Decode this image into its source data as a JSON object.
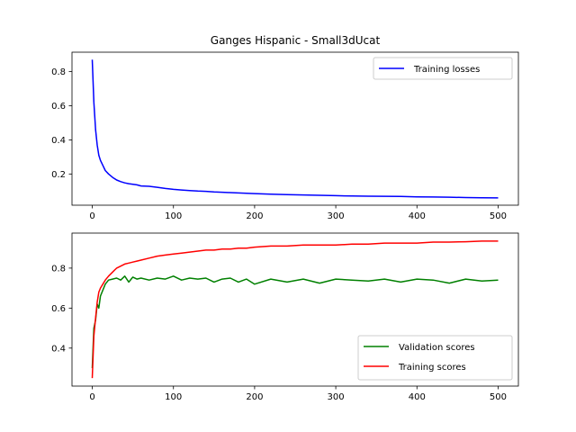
{
  "title": "Ganges Hispanic - Small3dUcat",
  "colors": {
    "losses": "#0000ff",
    "validation": "#008000",
    "training": "#ff0000"
  },
  "chart_data": [
    {
      "type": "line",
      "title": "Ganges Hispanic - Small3dUcat",
      "xlabel": "",
      "ylabel": "",
      "xlim": [
        -25,
        525
      ],
      "ylim": [
        0.017,
        0.914
      ],
      "x_ticks": [
        0,
        100,
        200,
        300,
        400,
        500
      ],
      "y_ticks": [
        0.2,
        0.4,
        0.6,
        0.8
      ],
      "x_tick_labels": [
        "0",
        "100",
        "200",
        "300",
        "400",
        "500"
      ],
      "y_tick_labels": [
        "0.2",
        "0.4",
        "0.6",
        "0.8"
      ],
      "grid": false,
      "legend": "top-right",
      "series": [
        {
          "name": "Training losses",
          "color": "#0000ff",
          "x": [
            0,
            2,
            4,
            6,
            8,
            10,
            13,
            16,
            20,
            25,
            30,
            35,
            40,
            45,
            50,
            55,
            60,
            70,
            80,
            90,
            100,
            110,
            120,
            130,
            140,
            150,
            160,
            170,
            180,
            190,
            200,
            220,
            240,
            260,
            280,
            300,
            320,
            340,
            360,
            380,
            400,
            420,
            440,
            460,
            480,
            500
          ],
          "y": [
            0.87,
            0.62,
            0.46,
            0.37,
            0.31,
            0.28,
            0.25,
            0.22,
            0.2,
            0.18,
            0.165,
            0.155,
            0.148,
            0.143,
            0.14,
            0.136,
            0.13,
            0.128,
            0.122,
            0.115,
            0.11,
            0.106,
            0.103,
            0.1,
            0.098,
            0.095,
            0.093,
            0.091,
            0.089,
            0.087,
            0.085,
            0.082,
            0.079,
            0.077,
            0.075,
            0.073,
            0.071,
            0.07,
            0.069,
            0.068,
            0.066,
            0.065,
            0.064,
            0.062,
            0.061,
            0.06
          ]
        }
      ]
    },
    {
      "type": "line",
      "title": "",
      "xlabel": "",
      "ylabel": "",
      "xlim": [
        -25,
        525
      ],
      "ylim": [
        0.21,
        0.975
      ],
      "x_ticks": [
        0,
        100,
        200,
        300,
        400,
        500
      ],
      "y_ticks": [
        0.4,
        0.6,
        0.8
      ],
      "x_tick_labels": [
        "0",
        "100",
        "200",
        "300",
        "400",
        "500"
      ],
      "y_tick_labels": [
        "0.4",
        "0.6",
        "0.8"
      ],
      "grid": false,
      "legend": "lower-right",
      "series": [
        {
          "name": "Validation scores",
          "color": "#008000",
          "x": [
            0,
            2,
            4,
            6,
            8,
            10,
            13,
            16,
            20,
            25,
            30,
            35,
            40,
            45,
            50,
            55,
            60,
            70,
            80,
            90,
            100,
            110,
            120,
            130,
            140,
            150,
            160,
            170,
            180,
            190,
            200,
            220,
            240,
            260,
            280,
            300,
            320,
            340,
            360,
            380,
            400,
            420,
            440,
            460,
            480,
            500
          ],
          "y": [
            0.3,
            0.5,
            0.54,
            0.62,
            0.6,
            0.66,
            0.69,
            0.72,
            0.74,
            0.745,
            0.75,
            0.74,
            0.76,
            0.73,
            0.755,
            0.745,
            0.75,
            0.74,
            0.75,
            0.745,
            0.76,
            0.74,
            0.75,
            0.745,
            0.75,
            0.73,
            0.745,
            0.75,
            0.73,
            0.745,
            0.72,
            0.745,
            0.73,
            0.745,
            0.725,
            0.745,
            0.74,
            0.735,
            0.745,
            0.73,
            0.745,
            0.74,
            0.725,
            0.745,
            0.735,
            0.74
          ]
        },
        {
          "name": "Training scores",
          "color": "#ff0000",
          "x": [
            0,
            2,
            4,
            6,
            8,
            10,
            13,
            16,
            20,
            25,
            30,
            35,
            40,
            45,
            50,
            55,
            60,
            70,
            80,
            90,
            100,
            110,
            120,
            130,
            140,
            150,
            160,
            170,
            180,
            190,
            200,
            220,
            240,
            260,
            280,
            300,
            320,
            340,
            360,
            380,
            400,
            420,
            440,
            460,
            480,
            500
          ],
          "y": [
            0.25,
            0.46,
            0.55,
            0.63,
            0.68,
            0.7,
            0.72,
            0.74,
            0.76,
            0.78,
            0.8,
            0.81,
            0.82,
            0.825,
            0.83,
            0.835,
            0.84,
            0.85,
            0.86,
            0.865,
            0.87,
            0.875,
            0.88,
            0.885,
            0.89,
            0.89,
            0.895,
            0.895,
            0.9,
            0.9,
            0.905,
            0.91,
            0.91,
            0.915,
            0.915,
            0.915,
            0.92,
            0.92,
            0.925,
            0.925,
            0.925,
            0.93,
            0.93,
            0.932,
            0.935,
            0.935
          ]
        }
      ]
    }
  ]
}
